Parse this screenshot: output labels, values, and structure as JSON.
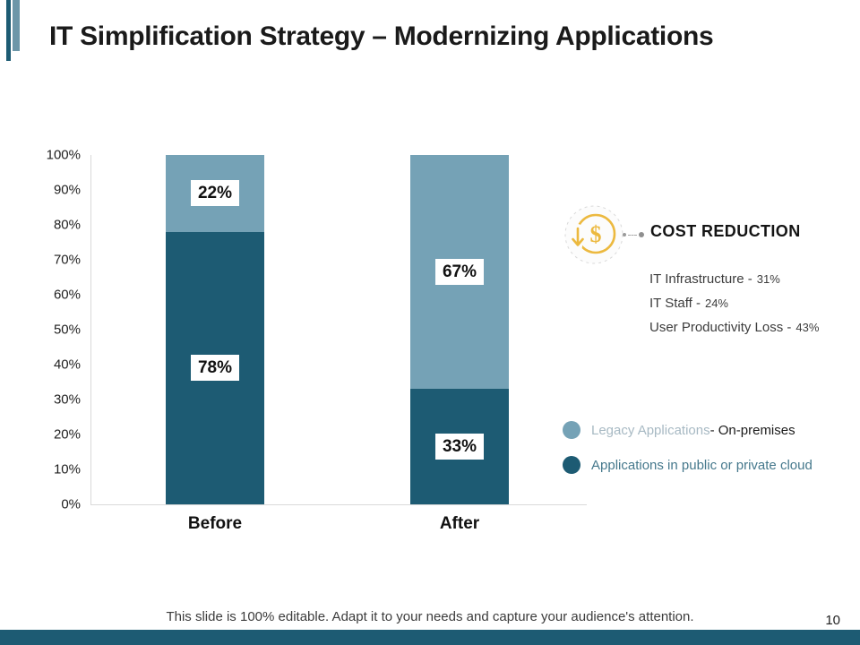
{
  "slide": {
    "title": "IT Simplification Strategy – Modernizing Applications",
    "footer": "This slide is 100% editable. Adapt it to your needs and capture your audience's attention.",
    "page_number": "10"
  },
  "chart_data": {
    "type": "bar",
    "stacked": true,
    "categories": [
      "Before",
      "After"
    ],
    "series": [
      {
        "name": "Applications in public or private cloud",
        "values": [
          78,
          33
        ],
        "color": "#1d5b73"
      },
      {
        "name": "Legacy Applications - On-premises",
        "values": [
          22,
          67
        ],
        "color": "#75a2b6"
      }
    ],
    "ytick_labels": [
      "0%",
      "10%",
      "20%",
      "30%",
      "40%",
      "50%",
      "60%",
      "70%",
      "80%",
      "90%",
      "100%"
    ],
    "ylim": [
      0,
      100
    ],
    "grid": false,
    "bar_texture": "white polka dots",
    "value_label_suffix": "%"
  },
  "cost_reduction": {
    "icon": "dollar-decrease-icon",
    "heading": "COST REDUCTION",
    "items": [
      {
        "label": "IT Infrastructure -",
        "value": "31%"
      },
      {
        "label": "IT Staff -",
        "value": "24%"
      },
      {
        "label": "User Productivity Loss -",
        "value": "43%"
      }
    ]
  },
  "legend": [
    {
      "label": "Legacy Applications",
      "suffix": " - On-premises",
      "swatch_color": "#75a2b6",
      "label_color": "#a7b9c3"
    },
    {
      "label": "Applications in public or private cloud",
      "suffix": "",
      "swatch_color": "#1d5b73",
      "label_color": "#45788c"
    }
  ],
  "colors": {
    "cloud_dark": "#1d5b73",
    "legacy_light": "#75a2b6",
    "accent_gold": "#ecb93f",
    "axis_line": "#d9d9d9",
    "bottom_bar": "#1d5b73"
  }
}
